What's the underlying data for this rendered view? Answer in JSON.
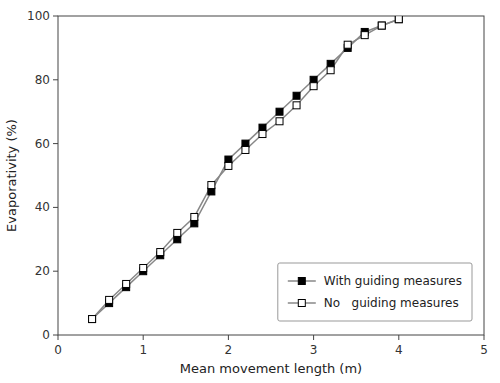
{
  "chart_data": {
    "type": "line",
    "x_label": "Mean movement length (m)",
    "y_label": "Evaporativity (%)",
    "x": [
      0.4,
      0.6,
      0.8,
      1.0,
      1.2,
      1.4,
      1.6,
      1.8,
      2.0,
      2.2,
      2.4,
      2.6,
      2.8,
      3.0,
      3.2,
      3.4,
      3.6,
      3.8,
      4.0
    ],
    "series": [
      {
        "name": "With guiding measures",
        "color": "#888888",
        "marker": "square",
        "values": [
          5,
          10,
          15,
          20,
          25,
          30,
          35,
          45,
          55,
          60,
          65,
          70,
          75,
          80,
          85,
          90,
          95,
          97,
          99
        ]
      },
      {
        "name": "No   guiding measures",
        "color": "#888888",
        "marker": "square-open",
        "values": [
          5,
          11,
          16,
          21,
          26,
          32,
          37,
          47,
          53,
          58,
          63,
          67,
          72,
          78,
          83,
          91,
          94,
          97,
          99
        ]
      }
    ],
    "xlim": [
      0,
      5
    ],
    "ylim": [
      0,
      100
    ],
    "xticks": [
      0,
      1,
      2,
      3,
      4,
      5
    ],
    "yticks": [
      0,
      20,
      40,
      60,
      80,
      100
    ],
    "grid": false,
    "legend": "lower right"
  }
}
